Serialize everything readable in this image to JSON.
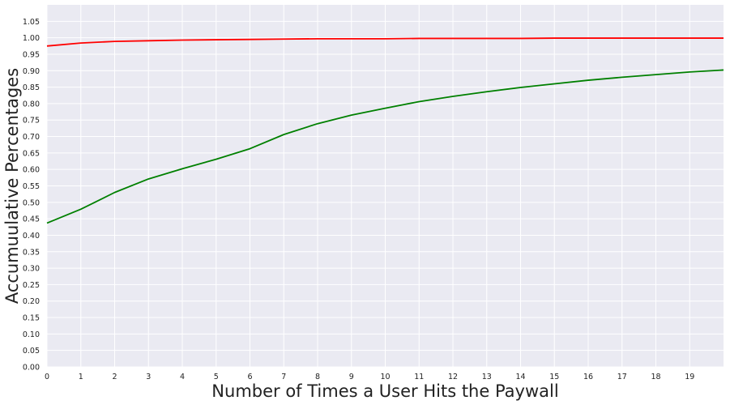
{
  "chart_data": {
    "type": "line",
    "title": "",
    "xlabel": "Number of Times a User Hits the Paywall",
    "ylabel": "Accumuulative Percentages",
    "xlim": [
      0,
      20
    ],
    "ylim": [
      0,
      1.1
    ],
    "x_ticks": [
      0,
      1,
      2,
      3,
      4,
      5,
      6,
      7,
      8,
      9,
      10,
      11,
      12,
      13,
      14,
      15,
      16,
      17,
      18,
      19
    ],
    "x_tick_labels": [
      "0",
      "1",
      "2",
      "3",
      "4",
      "5",
      "6",
      "7",
      "8",
      "9",
      "10",
      "11",
      "12",
      "13",
      "14",
      "15",
      "16",
      "17",
      "18",
      "19"
    ],
    "y_ticks": [
      0.0,
      0.05,
      0.1,
      0.15,
      0.2,
      0.25,
      0.3,
      0.35,
      0.4,
      0.45,
      0.5,
      0.55,
      0.6,
      0.65,
      0.7,
      0.75,
      0.8,
      0.85,
      0.9,
      0.95,
      1.0,
      1.05
    ],
    "y_tick_labels": [
      "0.00",
      "0.05",
      "0.10",
      "0.15",
      "0.20",
      "0.25",
      "0.30",
      "0.35",
      "0.40",
      "0.45",
      "0.50",
      "0.55",
      "0.60",
      "0.65",
      "0.70",
      "0.75",
      "0.80",
      "0.85",
      "0.90",
      "0.95",
      "1.00",
      "1.05"
    ],
    "grid": true,
    "background_color": "#eaeaf2",
    "grid_color": "#ffffff",
    "series": [
      {
        "color": "#ff0000",
        "x": [
          0,
          1,
          2,
          3,
          4,
          5,
          6,
          7,
          8,
          9,
          10,
          11,
          12,
          13,
          14,
          15,
          16,
          17,
          18,
          19,
          20
        ],
        "values": [
          0.975,
          0.984,
          0.989,
          0.991,
          0.993,
          0.994,
          0.995,
          0.996,
          0.997,
          0.997,
          0.997,
          0.998,
          0.998,
          0.998,
          0.998,
          0.999,
          0.999,
          0.999,
          0.999,
          0.999,
          0.999
        ]
      },
      {
        "color": "#008000",
        "x": [
          0,
          1,
          2,
          3,
          4,
          5,
          6,
          7,
          8,
          9,
          10,
          11,
          12,
          13,
          14,
          15,
          16,
          17,
          18,
          19,
          20
        ],
        "values": [
          0.437,
          0.479,
          0.53,
          0.571,
          0.602,
          0.631,
          0.663,
          0.706,
          0.739,
          0.765,
          0.786,
          0.806,
          0.822,
          0.836,
          0.849,
          0.86,
          0.871,
          0.88,
          0.888,
          0.896,
          0.902
        ]
      }
    ]
  }
}
